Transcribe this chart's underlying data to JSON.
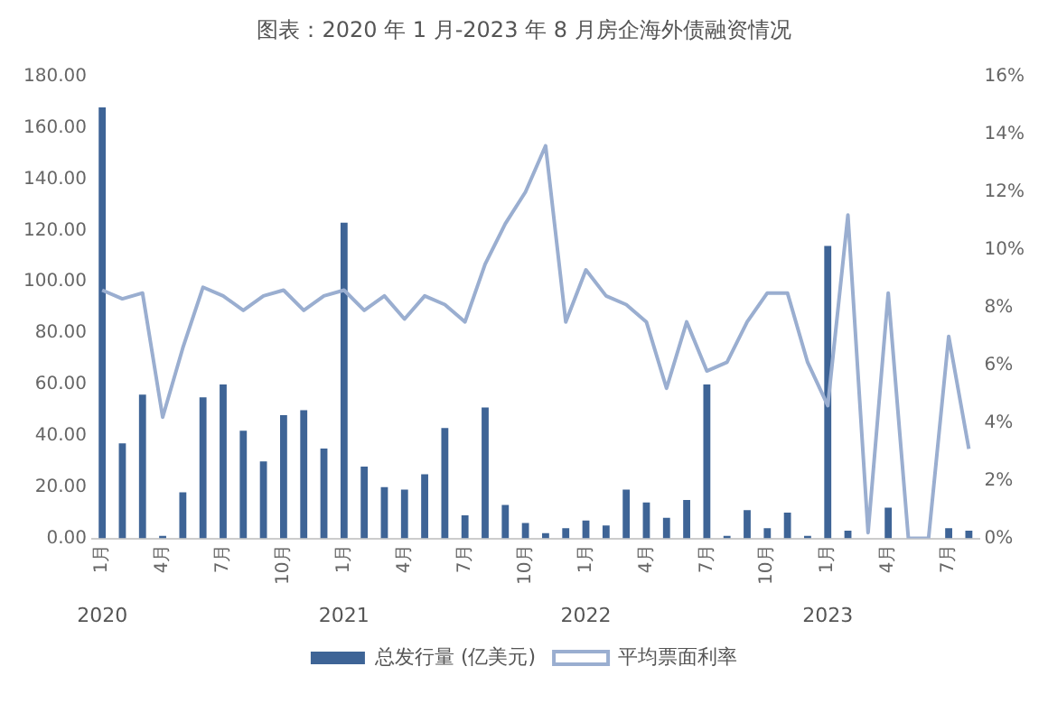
{
  "chart_data": {
    "type": "bar",
    "title": "图表：2020 年 1 月-2023 年 8 月房企海外债融资情况",
    "categories": [
      "1月",
      null,
      null,
      "4月",
      null,
      null,
      "7月",
      null,
      null,
      "10月",
      null,
      null,
      "1月",
      null,
      null,
      "4月",
      null,
      null,
      "7月",
      null,
      null,
      "10月",
      null,
      null,
      "1月",
      null,
      null,
      "4月",
      null,
      null,
      "7月",
      null,
      null,
      "10月",
      null,
      null,
      "1月",
      null,
      null,
      "4月",
      null,
      null,
      "7月",
      null
    ],
    "series": [
      {
        "name": "总发行量 (亿美元)",
        "color": "#3e6496",
        "values": [
          168,
          37,
          56,
          1,
          18,
          55,
          60,
          42,
          30,
          48,
          50,
          35,
          123,
          28,
          20,
          19,
          25,
          43,
          9,
          51,
          13,
          6,
          2,
          4,
          7,
          5,
          19,
          14,
          8,
          15,
          60,
          1,
          11,
          4,
          10,
          1,
          114,
          3,
          0,
          12,
          0,
          0,
          4,
          3
        ]
      },
      {
        "name": "平均票面利率",
        "type": "line",
        "axis": "y2",
        "color": "#9aaed0",
        "values": [
          8.6,
          8.3,
          8.5,
          4.2,
          6.6,
          8.7,
          8.4,
          7.9,
          8.4,
          8.6,
          7.9,
          8.4,
          8.6,
          7.9,
          8.4,
          7.6,
          8.4,
          8.1,
          7.5,
          9.5,
          10.9,
          12.0,
          13.6,
          7.5,
          9.3,
          8.4,
          8.1,
          7.5,
          5.2,
          7.5,
          5.8,
          6.1,
          7.5,
          8.5,
          8.5,
          6.1,
          4.6,
          11.2,
          0.2,
          8.5,
          0,
          0,
          7.0,
          3.1
        ]
      }
    ],
    "ylim": [
      0,
      180
    ],
    "yticks": [
      {
        "value": 0,
        "label": "0.00"
      },
      {
        "value": 20,
        "label": "20.00"
      },
      {
        "value": 40,
        "label": "40.00"
      },
      {
        "value": 60,
        "label": "60.00"
      },
      {
        "value": 80,
        "label": "80.00"
      },
      {
        "value": 100,
        "label": "100.00"
      },
      {
        "value": 120,
        "label": "120.00"
      },
      {
        "value": 140,
        "label": "140.00"
      },
      {
        "value": 160,
        "label": "160.00"
      },
      {
        "value": 180,
        "label": "180.00"
      }
    ],
    "y2lim": [
      0,
      16
    ],
    "y2ticks": [
      {
        "value": 0,
        "label": "0%"
      },
      {
        "value": 2,
        "label": "2%"
      },
      {
        "value": 4,
        "label": "4%"
      },
      {
        "value": 6,
        "label": "6%"
      },
      {
        "value": 8,
        "label": "8%"
      },
      {
        "value": 10,
        "label": "10%"
      },
      {
        "value": 12,
        "label": "12%"
      },
      {
        "value": 14,
        "label": "14%"
      },
      {
        "value": 16,
        "label": "16%"
      }
    ],
    "annotations": [
      "2020",
      "2021",
      "2022",
      "2023"
    ],
    "grid": false,
    "legend": "bottom",
    "marker": "none",
    "line_style": "solid"
  }
}
